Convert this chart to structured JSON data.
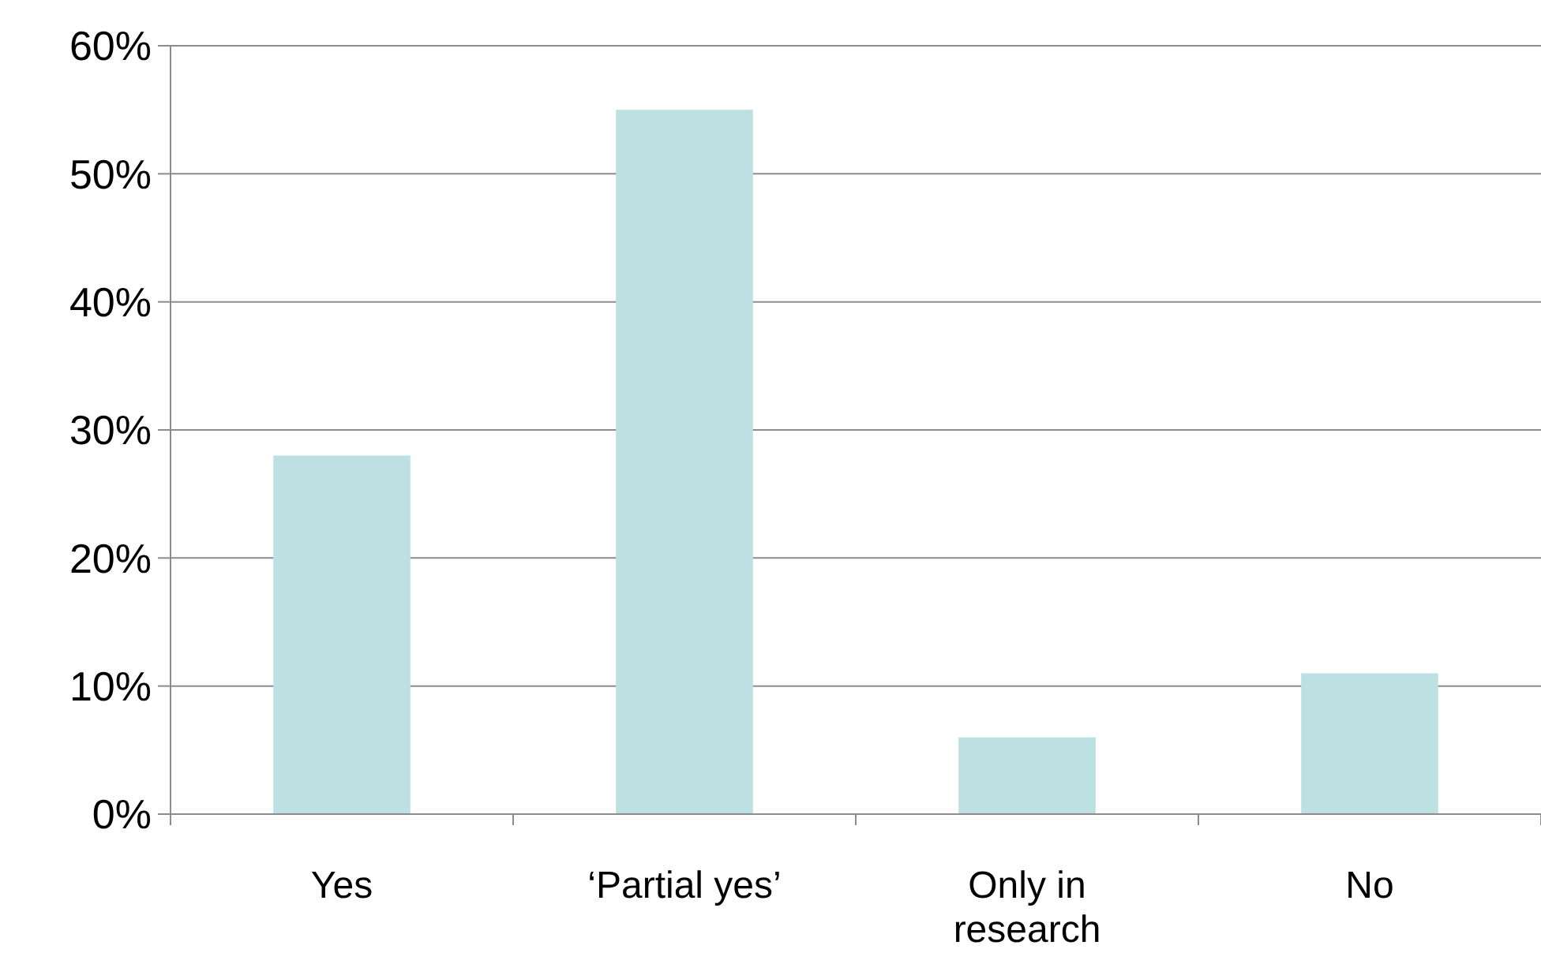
{
  "chart_data": {
    "type": "bar",
    "categories": [
      "Yes",
      "‘Partial yes’",
      "Only in research",
      "No"
    ],
    "values": [
      28,
      55,
      6,
      11
    ],
    "color": "#bde0e3",
    "ylim": [
      0,
      60
    ],
    "yticks": [
      {
        "value": 0,
        "label": "0%"
      },
      {
        "value": 10,
        "label": "10%"
      },
      {
        "value": 20,
        "label": "20%"
      },
      {
        "value": 30,
        "label": "30%"
      },
      {
        "value": 40,
        "label": "40%"
      },
      {
        "value": 50,
        "label": "50%"
      },
      {
        "value": 60,
        "label": "60%"
      }
    ],
    "grid": "y"
  }
}
